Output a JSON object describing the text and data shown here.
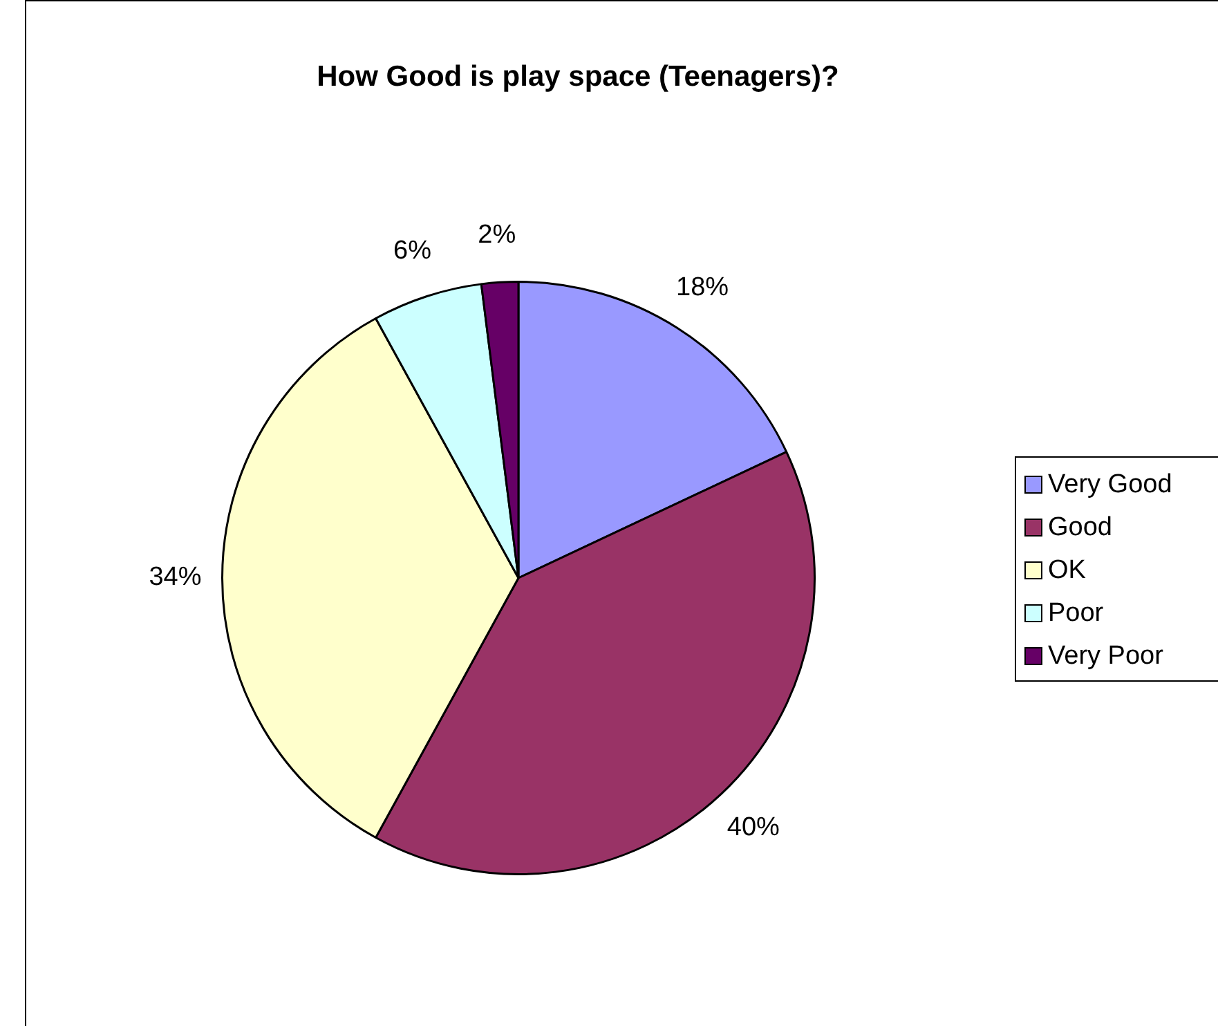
{
  "chart_data": {
    "type": "pie",
    "title": "How Good is play space (Teenagers)?",
    "categories": [
      "Very Good",
      "Good",
      "OK",
      "Poor",
      "Very Poor"
    ],
    "values": [
      18,
      40,
      34,
      6,
      2
    ],
    "colors": [
      "#9999ff",
      "#993366",
      "#ffffcc",
      "#ccffff",
      "#660066"
    ],
    "value_labels": [
      "18%",
      "40%",
      "34%",
      "6%",
      "2%"
    ],
    "legend": "right"
  }
}
